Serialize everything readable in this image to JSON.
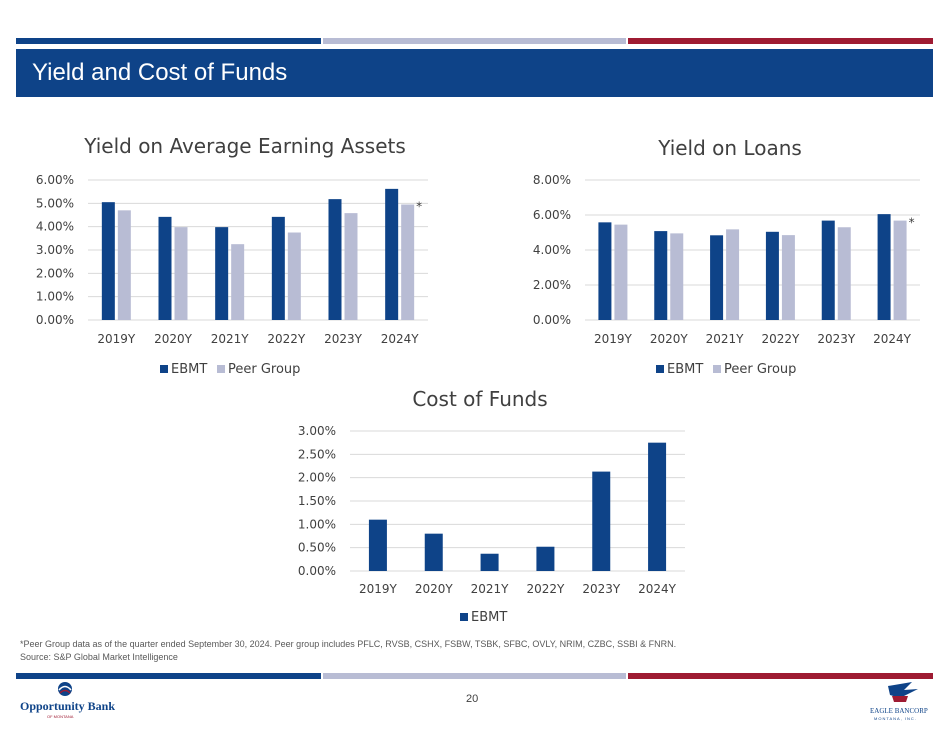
{
  "slide": {
    "title": "Yield and Cost of Funds",
    "page_number": "20",
    "footnote_1": "*Peer Group data as of the quarter ended September 30, 2024. Peer group includes PFLC, RVSB, CSHX, FSBW, TSBK, SFBC, OVLY, NRIM, CZBC, SSBI & FNRN.",
    "footnote_2": "Source: S&P Global Market Intelligence"
  },
  "logos": {
    "left_name": "Opportunity Bank",
    "left_sub": "OF MONTANA",
    "right_name": "EAGLE BANCORP",
    "right_sub": "MONTANA, INC."
  },
  "colors": {
    "ebmt": "#0e4388",
    "peer": "#b8bcd4",
    "stripe_blue": "#0e4388",
    "stripe_gray": "#b8bcd4",
    "stripe_red": "#9e1b32"
  },
  "chart_data": [
    {
      "type": "bar",
      "title": "Yield on Average Earning Assets",
      "categories": [
        "2019Y",
        "2020Y",
        "2021Y",
        "2022Y",
        "2023Y",
        "2024Y"
      ],
      "series": [
        {
          "name": "EBMT",
          "values": [
            5.05,
            4.42,
            3.98,
            4.42,
            5.18,
            5.62
          ]
        },
        {
          "name": "Peer Group",
          "values": [
            4.7,
            3.98,
            3.25,
            3.75,
            4.58,
            4.95
          ]
        }
      ],
      "yticks": [
        "0.00%",
        "1.00%",
        "2.00%",
        "3.00%",
        "4.00%",
        "5.00%",
        "6.00%"
      ],
      "ylim": [
        0,
        6
      ],
      "annotation": "*",
      "legend": "bottom"
    },
    {
      "type": "bar",
      "title": "Yield on Loans",
      "categories": [
        "2019Y",
        "2020Y",
        "2021Y",
        "2022Y",
        "2023Y",
        "2024Y"
      ],
      "series": [
        {
          "name": "EBMT",
          "values": [
            5.58,
            5.08,
            4.84,
            5.04,
            5.68,
            6.05
          ]
        },
        {
          "name": "Peer Group",
          "values": [
            5.45,
            4.95,
            5.18,
            4.85,
            5.3,
            5.68
          ]
        }
      ],
      "yticks": [
        "0.00%",
        "2.00%",
        "4.00%",
        "6.00%",
        "8.00%"
      ],
      "ylim": [
        0,
        8
      ],
      "annotation": "*",
      "legend": "bottom"
    },
    {
      "type": "bar",
      "title": "Cost of Funds",
      "categories": [
        "2019Y",
        "2020Y",
        "2021Y",
        "2022Y",
        "2023Y",
        "2024Y"
      ],
      "series": [
        {
          "name": "EBMT",
          "values": [
            1.1,
            0.8,
            0.37,
            0.52,
            2.13,
            2.75
          ]
        }
      ],
      "yticks": [
        "0.00%",
        "0.50%",
        "1.00%",
        "1.50%",
        "2.00%",
        "2.50%",
        "3.00%"
      ],
      "ylim": [
        0,
        3
      ],
      "legend": "bottom"
    }
  ]
}
